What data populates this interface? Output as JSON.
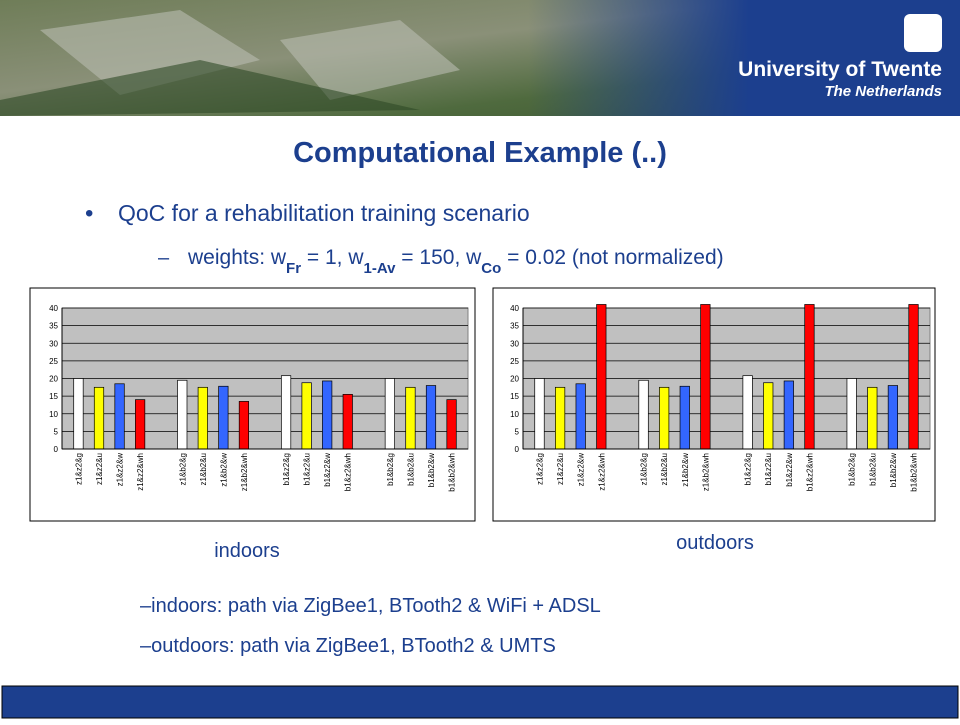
{
  "header": {
    "university": "University of Twente",
    "country": "The Netherlands"
  },
  "title": "Computational Example (..)",
  "bullets": [
    {
      "text": "QoC for a rehabilitation training scenario"
    },
    {
      "parts": [
        "weights: w",
        "Fr",
        " = 1, w",
        "1-Av",
        " = 150, w",
        "Co",
        " = 0.02  (not normalized)"
      ]
    }
  ],
  "chart_data": [
    {
      "type": "bar",
      "label": "indoors",
      "categories": [
        "z1&z2&g",
        "z1&z2&u",
        "z1&z2&w",
        "z1&z2&wh",
        "z1&b2&g",
        "z1&b2&u",
        "z1&b2&w",
        "z1&b2&wh",
        "b1&z2&g",
        "b1&z2&u",
        "b1&z2&w",
        "b1&z2&wh",
        "b1&b2&g",
        "b1&b2&u",
        "b1&b2&w",
        "b1&b2&wh"
      ],
      "values": [
        20,
        17.5,
        18.5,
        14,
        19.5,
        17.5,
        17.8,
        13.5,
        20.8,
        18.8,
        19.3,
        15.5,
        20,
        17.5,
        18,
        14
      ],
      "colors": [
        "#ffffff",
        "#ffff00",
        "#3366ff",
        "#ff0000",
        "#ffffff",
        "#ffff00",
        "#3366ff",
        "#ff0000",
        "#ffffff",
        "#ffff00",
        "#3366ff",
        "#ff0000",
        "#ffffff",
        "#ffff00",
        "#3366ff",
        "#ff0000"
      ],
      "ylim": [
        0,
        40
      ],
      "yticks": [
        0,
        5,
        10,
        15,
        20,
        25,
        30,
        35,
        40
      ],
      "grid": true
    },
    {
      "type": "bar",
      "label": "outdoors",
      "categories": [
        "z1&z2&g",
        "z1&z2&u",
        "z1&z2&w",
        "z1&z2&wh",
        "z1&b2&g",
        "z1&b2&u",
        "z1&b2&w",
        "z1&b2&wh",
        "b1&z2&g",
        "b1&z2&u",
        "b1&z2&w",
        "b1&z2&wh",
        "b1&b2&g",
        "b1&b2&u",
        "b1&b2&w",
        "b1&b2&wh"
      ],
      "values": [
        20,
        17.5,
        18.5,
        41,
        19.5,
        17.5,
        17.8,
        41,
        20.8,
        18.8,
        19.3,
        41,
        20,
        17.5,
        18,
        41
      ],
      "colors": [
        "#ffffff",
        "#ffff00",
        "#3366ff",
        "#ff0000",
        "#ffffff",
        "#ffff00",
        "#3366ff",
        "#ff0000",
        "#ffffff",
        "#ffff00",
        "#3366ff",
        "#ff0000",
        "#ffffff",
        "#ffff00",
        "#3366ff",
        "#ff0000"
      ],
      "ylim": [
        0,
        40
      ],
      "yticks": [
        0,
        5,
        10,
        15,
        20,
        25,
        30,
        35,
        40
      ],
      "grid": true
    }
  ],
  "notes": [
    "–indoors:  path via ZigBee1, BTooth2 & WiFi + ADSL",
    "–outdoors: path via ZigBee1, BTooth2 & UMTS"
  ]
}
